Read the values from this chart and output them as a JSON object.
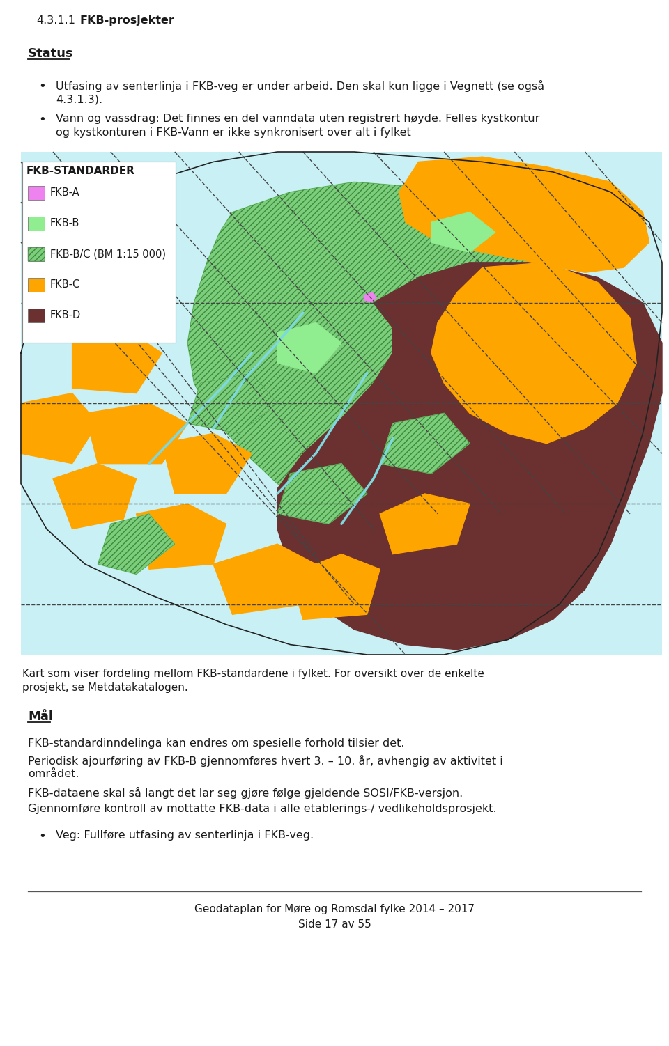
{
  "page_bg": "#ffffff",
  "section_number": "4.3.1.1",
  "section_title": "FKB-prosjekter",
  "status_label": "Status",
  "bullet1_line1": "Utfasing av senterlinja i FKB-veg er under arbeid. Den skal kun ligge i Vegnett (se også",
  "bullet1_line2": "4.3.1.3).",
  "bullet2_line1": "Vann og vassdrag: Det finnes en del vanndata uten registrert høyde. Felles kystkontur",
  "bullet2_line2": "og kystkonturen i FKB-Vann er ikke synkronisert over alt i fylket",
  "legend_title": "FKB-STANDARDER",
  "legend_items": [
    {
      "label": "FKB-A",
      "color": "#ee82ee",
      "hatch": null
    },
    {
      "label": "FKB-B",
      "color": "#90ee90",
      "hatch": null
    },
    {
      "label": "FKB-B/C (BM 1:15 000)",
      "color": "#7ccd7c",
      "hatch": "////"
    },
    {
      "label": "FKB-C",
      "color": "#ffa500",
      "hatch": null
    },
    {
      "label": "FKB-D",
      "color": "#6b3030",
      "hatch": null
    }
  ],
  "map_caption_line1": "Kart som viser fordeling mellom FKB-standardene i fylket. For oversikt over de enkelte",
  "map_caption_line2": "prosjekt, se Metdatakatalogen.",
  "maal_label": "Mål",
  "para1": "FKB-standardinndelinga kan endres om spesielle forhold tilsier det.",
  "para2_line1": "Periodisk ajourføring av FKB-B gjennomføres hvert 3. – 10. år, avhengig av aktivitet i",
  "para2_line2": "området.",
  "para3": "FKB-dataene skal så langt det lar seg gjøre følge gjeldende SOSI/FKB-versjon.",
  "para4": "Gjennomføre kontroll av mottatte FKB-data i alle etablerings-/ vedlikeholdsprosjekt.",
  "bullet_maal": "Veg: Fullføre utfasing av senterlinja i FKB-veg.",
  "footer_line1": "Geodataplan for Møre og Romsdal fylke 2014 – 2017",
  "footer_line2": "Side 17 av 55",
  "text_color": "#1a1a1a",
  "map_bg_color": "#c8f0f5",
  "fkb_a_color": "#ee82ee",
  "fkb_b_color": "#90ee90",
  "fkb_bc_color": "#7ccd7c",
  "fkb_c_color": "#ffa500",
  "fkb_d_color": "#6b3030",
  "outline_color": "#333333",
  "water_color": "#7dd8e0"
}
